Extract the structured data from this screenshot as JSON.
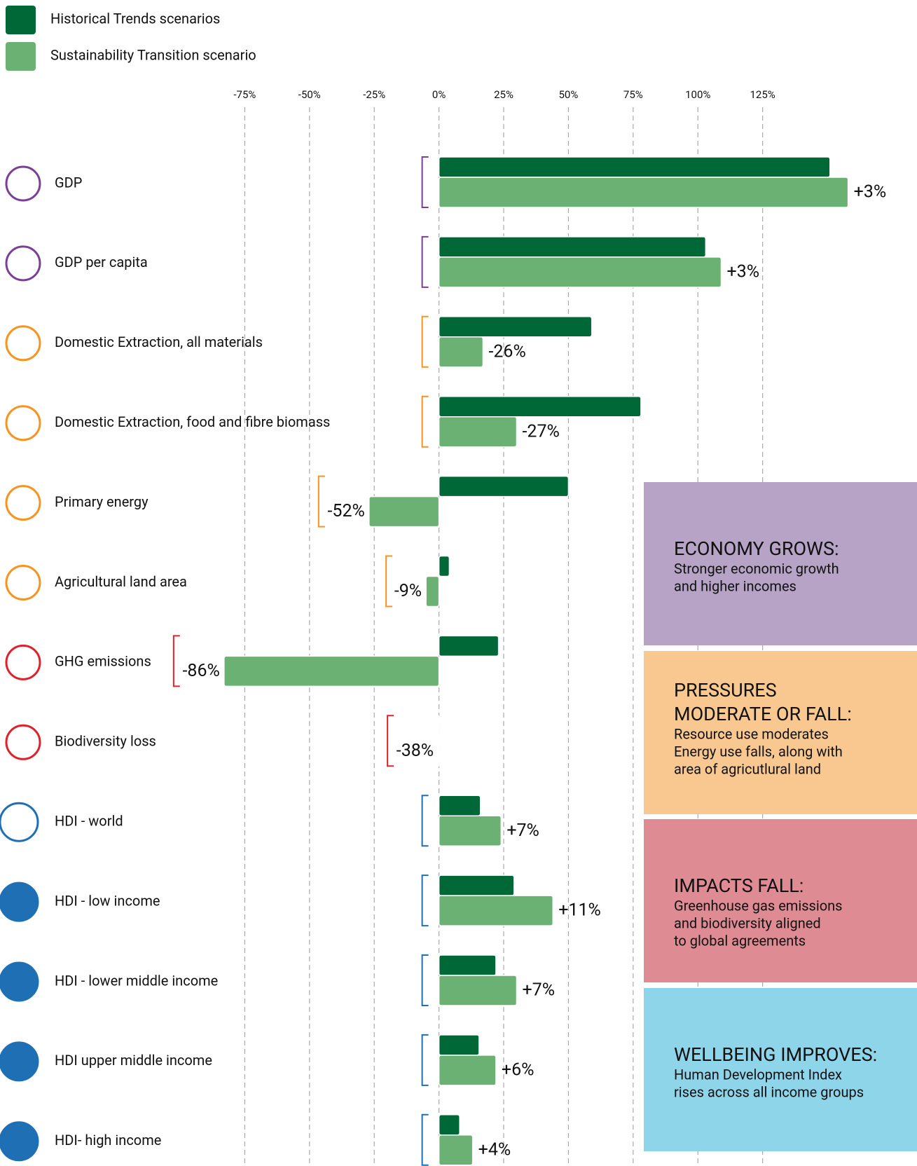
{
  "legend": [
    "Historical Trends scenarios",
    "Sustainability Transition scenario"
  ],
  "chart_data": {
    "type": "bar",
    "orientation": "horizontal",
    "categories": [
      "GDP",
      "GDP per capita",
      "Domestic Extraction, all materials",
      "Domestic Extraction, food and fibre biomass",
      "Primary energy",
      "Agricultural land area",
      "GHG emissions",
      "Biodiversity loss",
      "HDI - world",
      "HDI - low income",
      "HDI - lower middle income",
      "HDI upper middle income",
      "HDI- high income"
    ],
    "series": [
      {
        "name": "Historical Trends scenarios",
        "color": "#006837",
        "values": [
          151,
          103,
          59,
          78,
          50,
          4,
          23,
          -0.4,
          16,
          29,
          22,
          15.5,
          8
        ]
      },
      {
        "name": "Sustainability Transition scenario",
        "color": "#6ab173",
        "values": [
          158,
          109,
          17,
          30,
          -27,
          -5,
          -83,
          -0.4,
          24,
          44,
          30,
          22,
          13
        ]
      }
    ],
    "change_labels": [
      "+3%",
      "+3%",
      "-26%",
      "-27%",
      "-52%",
      "-9%",
      "-86%",
      "-38%",
      "+7%",
      "+11%",
      "+7%",
      "+6%",
      "+4%"
    ],
    "xlim": [
      -100,
      160
    ],
    "xticks": [
      {
        "value": -75,
        "label": "-75%"
      },
      {
        "value": -50,
        "label": "-50%"
      },
      {
        "value": -25,
        "label": "-25%"
      },
      {
        "value": 0,
        "label": "0%"
      },
      {
        "value": 25,
        "label": "25%"
      },
      {
        "value": 50,
        "label": "50%"
      },
      {
        "value": 75,
        "label": "75%"
      },
      {
        "value": 100,
        "label": "100%"
      },
      {
        "value": 125,
        "label": "125%"
      }
    ],
    "grid": true
  },
  "panels": [
    {
      "title": [
        "ECONOMY GROWS:"
      ],
      "color": "#b7a3c6",
      "text": [
        "Stronger economic growth",
        "and higher incomes"
      ]
    },
    {
      "title": [
        "PRESSURES",
        "MODERATE OR FALL:"
      ],
      "color": "#f8c890",
      "text": [
        "Resource use moderates",
        "Energy use falls, along with",
        "area of agricutlural land"
      ]
    },
    {
      "title": [
        "IMPACTS FALL:"
      ],
      "color": "#de8b93",
      "text": [
        "Greenhouse gas emissions",
        "and biodiversity aligned",
        "to global agreements"
      ]
    },
    {
      "title": [
        "WELLBEING IMPROVES:"
      ],
      "color": "#8fd5ea",
      "text": [
        "Human Development Index",
        "rises across all income groups"
      ]
    }
  ]
}
